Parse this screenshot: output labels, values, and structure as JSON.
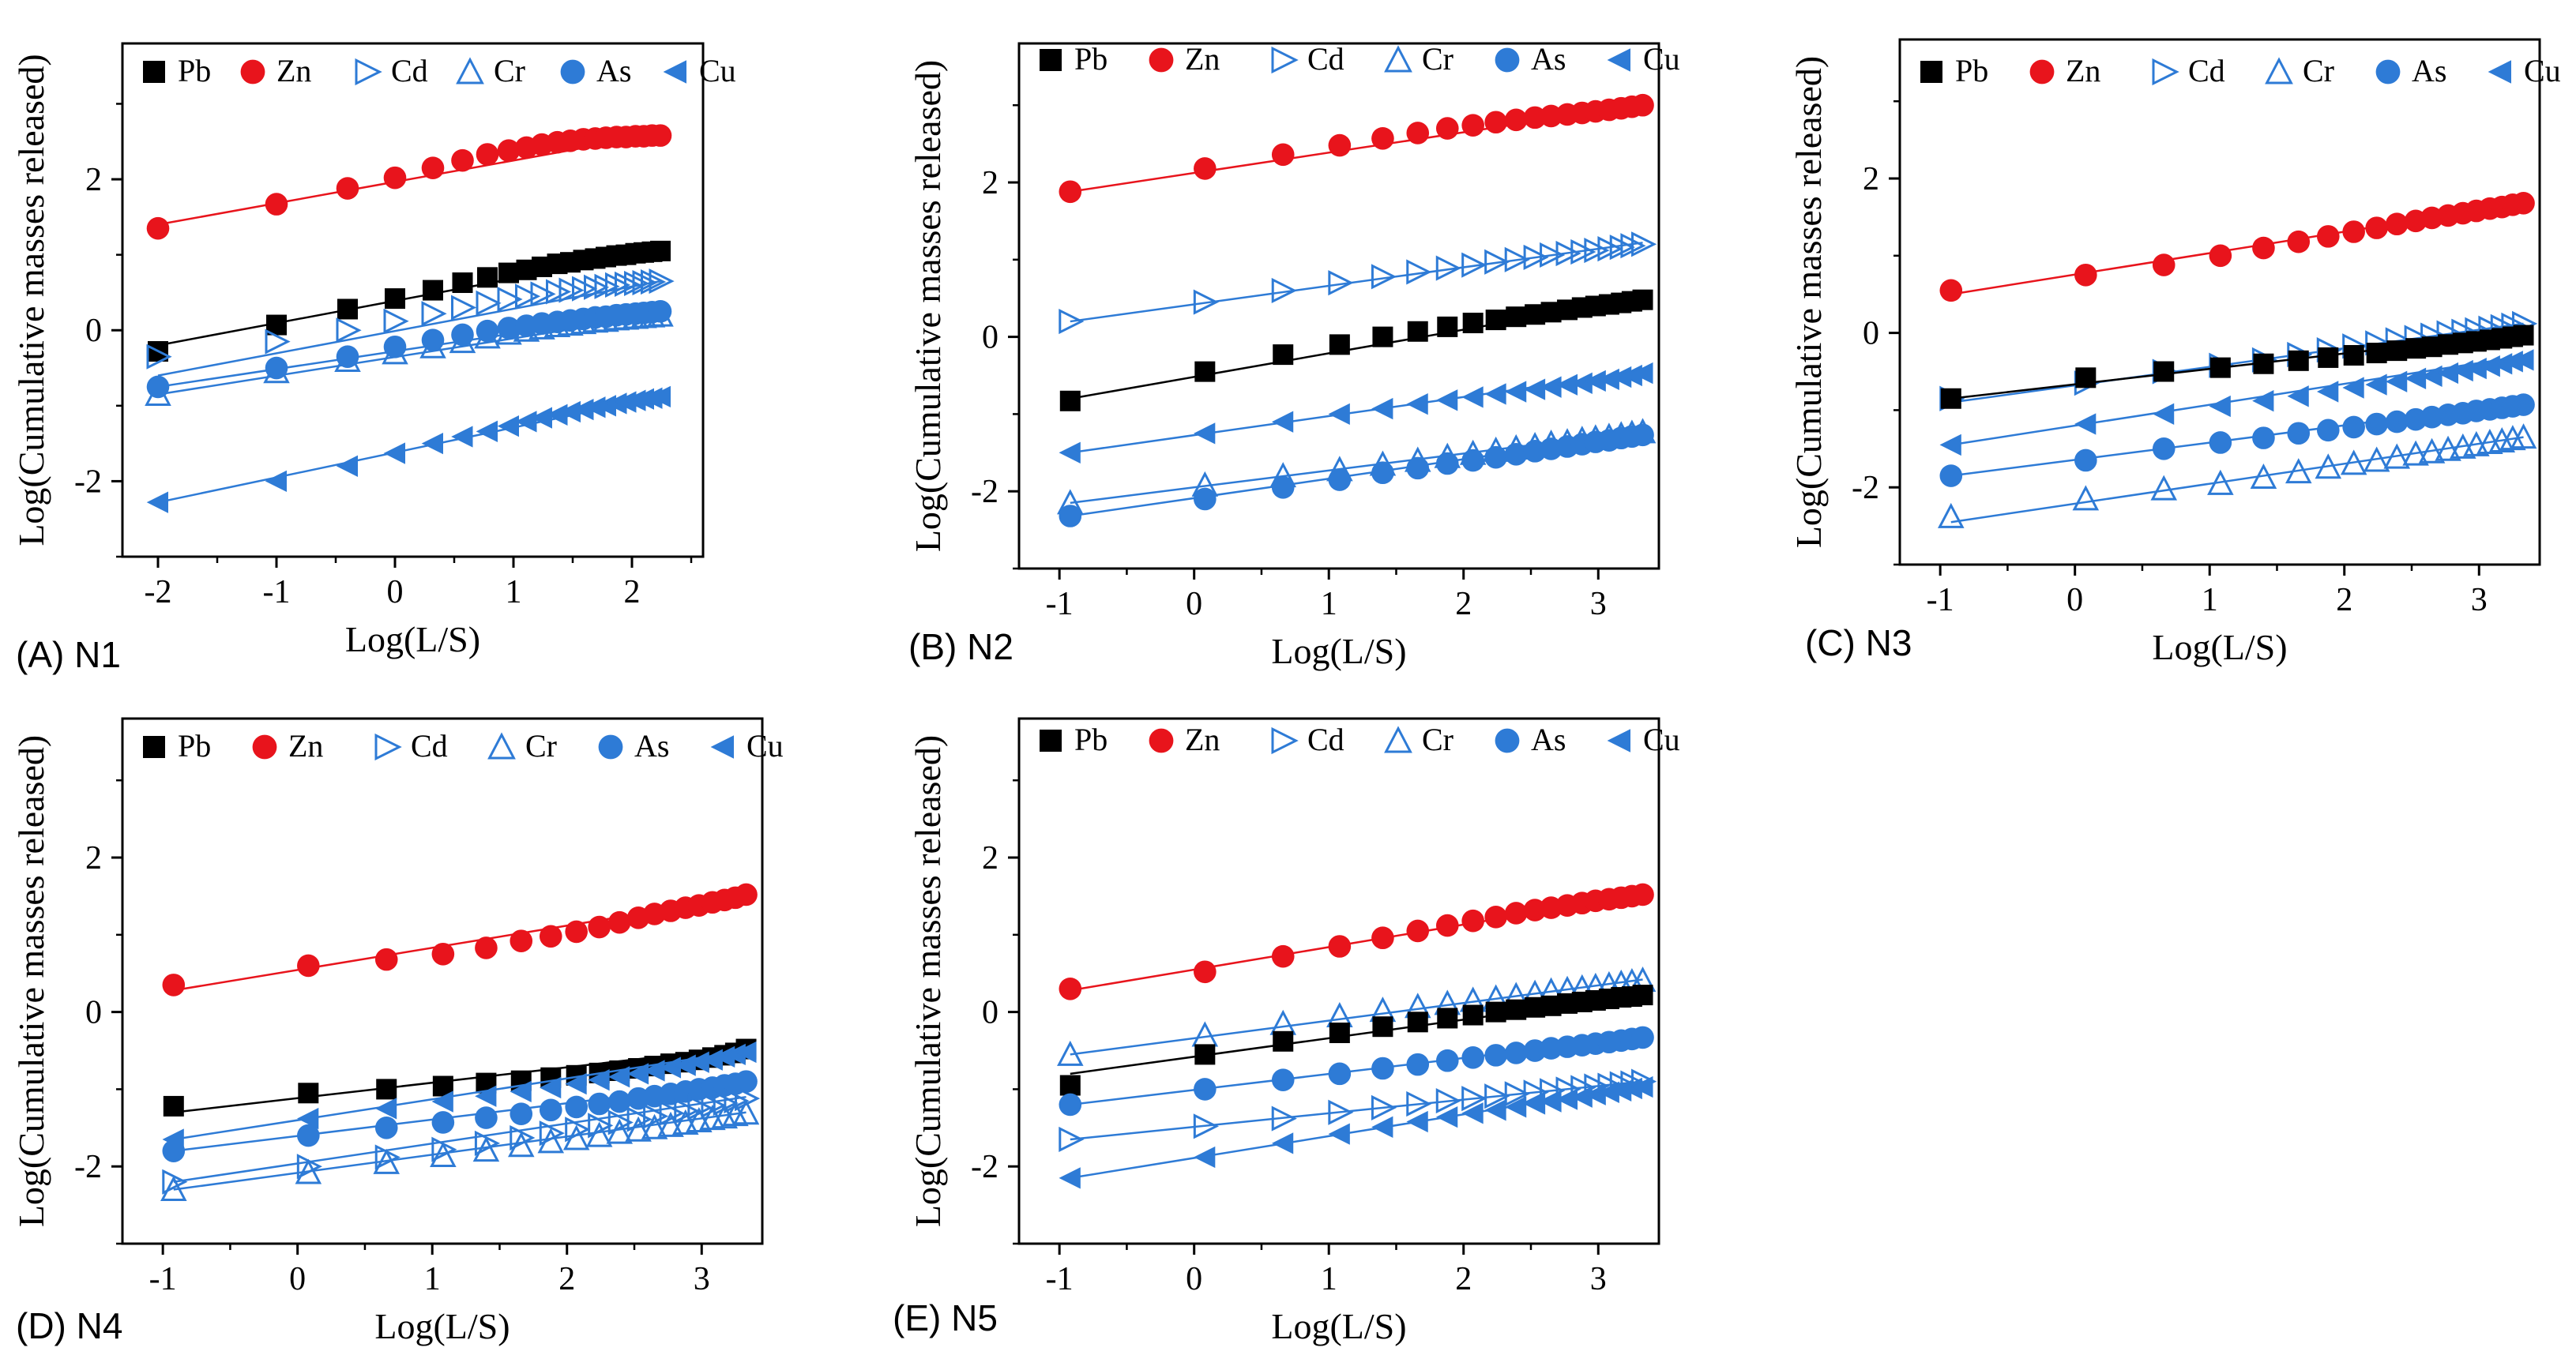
{
  "legend_labels": [
    "Pb",
    "Zn",
    "Cd",
    "Cr",
    "As",
    "Cu"
  ],
  "series_styles": {
    "Pb": {
      "color": "#000000",
      "marker": "square-filled"
    },
    "Zn": {
      "color": "#e8141c",
      "marker": "circle-filled"
    },
    "Cd": {
      "color": "#2e7bd6",
      "marker": "triangle-right-open"
    },
    "Cr": {
      "color": "#2e7bd6",
      "marker": "triangle-up-open"
    },
    "As": {
      "color": "#2e7bd6",
      "marker": "circle-filled"
    },
    "Cu": {
      "color": "#2e7bd6",
      "marker": "triangle-left-filled"
    }
  },
  "chart_data": [
    {
      "type": "scatter",
      "panel": "(A) N1",
      "xlabel": "Log(L/S)",
      "ylabel": "Log(Cumulative masses released)",
      "xlim": [
        -2.3,
        2.6
      ],
      "ylim": [
        -3.0,
        3.8
      ],
      "xticks": [
        -2,
        -1,
        0,
        1,
        2
      ],
      "yticks": [
        -2,
        0,
        2
      ],
      "legend_position": "top",
      "x": [
        -2.0,
        -1.0,
        -0.4,
        0.0,
        0.32,
        0.57,
        0.78,
        0.96,
        1.11,
        1.24,
        1.37,
        1.48,
        1.59,
        1.69,
        1.78,
        1.87,
        1.95,
        2.03,
        2.1,
        2.17,
        2.24
      ],
      "series": [
        {
          "name": "Zn",
          "fit": [
            1.4,
            2.6
          ],
          "values": [
            1.35,
            1.67,
            1.88,
            2.02,
            2.15,
            2.25,
            2.33,
            2.38,
            2.42,
            2.46,
            2.49,
            2.51,
            2.53,
            2.54,
            2.55,
            2.56,
            2.56,
            2.57,
            2.57,
            2.58,
            2.58
          ]
        },
        {
          "name": "Pb",
          "fit": [
            -0.2,
            1.05
          ],
          "values": [
            -0.28,
            0.07,
            0.28,
            0.42,
            0.53,
            0.63,
            0.7,
            0.76,
            0.8,
            0.84,
            0.88,
            0.9,
            0.93,
            0.95,
            0.97,
            0.99,
            1.0,
            1.02,
            1.03,
            1.04,
            1.05
          ]
        },
        {
          "name": "Cd",
          "fit": [
            -0.6,
            0.65
          ],
          "values": [
            -0.35,
            -0.15,
            0.0,
            0.12,
            0.22,
            0.3,
            0.36,
            0.41,
            0.45,
            0.48,
            0.51,
            0.53,
            0.55,
            0.57,
            0.58,
            0.6,
            0.61,
            0.62,
            0.63,
            0.64,
            0.65
          ]
        },
        {
          "name": "Cr",
          "fit": [
            -0.85,
            0.2
          ],
          "values": [
            -0.85,
            -0.55,
            -0.4,
            -0.3,
            -0.22,
            -0.15,
            -0.09,
            -0.04,
            0.0,
            0.03,
            0.06,
            0.08,
            0.1,
            0.12,
            0.13,
            0.15,
            0.16,
            0.17,
            0.18,
            0.19,
            0.2
          ]
        },
        {
          "name": "As",
          "fit": [
            -0.75,
            0.25
          ],
          "values": [
            -0.75,
            -0.5,
            -0.35,
            -0.22,
            -0.13,
            -0.06,
            -0.01,
            0.03,
            0.06,
            0.09,
            0.11,
            0.13,
            0.15,
            0.17,
            0.18,
            0.2,
            0.21,
            0.22,
            0.23,
            0.24,
            0.25
          ]
        },
        {
          "name": "Cu",
          "fit": [
            -2.28,
            -0.88
          ],
          "values": [
            -2.28,
            -2.0,
            -1.8,
            -1.63,
            -1.5,
            -1.41,
            -1.34,
            -1.27,
            -1.21,
            -1.16,
            -1.12,
            -1.08,
            -1.05,
            -1.02,
            -1.0,
            -0.97,
            -0.95,
            -0.93,
            -0.91,
            -0.9,
            -0.88
          ]
        }
      ]
    },
    {
      "type": "scatter",
      "panel": "(B) N2",
      "xlabel": "Log(L/S)",
      "ylabel": "Log(Cumulative masses released)",
      "xlim": [
        -1.3,
        3.45
      ],
      "ylim": [
        -3.0,
        3.8
      ],
      "xticks": [
        -1,
        0,
        1,
        2,
        3
      ],
      "yticks": [
        -2,
        0,
        2
      ],
      "legend_position": "top",
      "x": [
        -0.92,
        0.08,
        0.66,
        1.08,
        1.4,
        1.66,
        1.88,
        2.07,
        2.24,
        2.39,
        2.53,
        2.65,
        2.77,
        2.88,
        2.98,
        3.08,
        3.17,
        3.25,
        3.33
      ],
      "series": [
        {
          "name": "Zn",
          "fit": [
            1.88,
            3.0
          ],
          "values": [
            1.88,
            2.18,
            2.36,
            2.48,
            2.57,
            2.64,
            2.7,
            2.74,
            2.78,
            2.81,
            2.84,
            2.86,
            2.88,
            2.9,
            2.92,
            2.94,
            2.96,
            2.98,
            3.0
          ]
        },
        {
          "name": "Cd",
          "fit": [
            0.2,
            1.22
          ],
          "values": [
            0.2,
            0.45,
            0.6,
            0.7,
            0.78,
            0.84,
            0.89,
            0.93,
            0.97,
            1.0,
            1.03,
            1.06,
            1.08,
            1.1,
            1.12,
            1.14,
            1.16,
            1.18,
            1.2
          ]
        },
        {
          "name": "Pb",
          "fit": [
            -0.8,
            0.5
          ],
          "values": [
            -0.83,
            -0.45,
            -0.23,
            -0.1,
            0.0,
            0.07,
            0.13,
            0.18,
            0.22,
            0.26,
            0.29,
            0.32,
            0.35,
            0.38,
            0.4,
            0.42,
            0.44,
            0.46,
            0.48
          ]
        },
        {
          "name": "Cu",
          "fit": [
            -1.5,
            -0.45
          ],
          "values": [
            -1.5,
            -1.25,
            -1.1,
            -1.0,
            -0.93,
            -0.87,
            -0.82,
            -0.78,
            -0.74,
            -0.71,
            -0.68,
            -0.65,
            -0.62,
            -0.6,
            -0.57,
            -0.55,
            -0.52,
            -0.5,
            -0.47
          ]
        },
        {
          "name": "Cr",
          "fit": [
            -2.15,
            -1.22
          ],
          "values": [
            -2.15,
            -1.92,
            -1.8,
            -1.72,
            -1.65,
            -1.6,
            -1.55,
            -1.51,
            -1.47,
            -1.44,
            -1.41,
            -1.38,
            -1.36,
            -1.33,
            -1.31,
            -1.29,
            -1.27,
            -1.25,
            -1.23
          ]
        },
        {
          "name": "As",
          "fit": [
            -2.32,
            -1.25
          ],
          "values": [
            -2.32,
            -2.1,
            -1.95,
            -1.85,
            -1.76,
            -1.7,
            -1.64,
            -1.6,
            -1.56,
            -1.52,
            -1.48,
            -1.45,
            -1.42,
            -1.39,
            -1.36,
            -1.34,
            -1.31,
            -1.29,
            -1.27
          ]
        }
      ]
    },
    {
      "type": "scatter",
      "panel": "(C) N3",
      "xlabel": "Log(L/S)",
      "ylabel": "Log(Cumulative masses released)",
      "xlim": [
        -1.3,
        3.45
      ],
      "ylim": [
        -3.0,
        3.8
      ],
      "xticks": [
        -1,
        0,
        1,
        2,
        3
      ],
      "yticks": [
        -2,
        0,
        2
      ],
      "legend_position": "top",
      "x": [
        -0.92,
        0.08,
        0.66,
        1.08,
        1.4,
        1.66,
        1.88,
        2.07,
        2.24,
        2.39,
        2.53,
        2.65,
        2.77,
        2.88,
        2.98,
        3.08,
        3.17,
        3.25,
        3.33
      ],
      "series": [
        {
          "name": "Zn",
          "fit": [
            0.5,
            1.68
          ],
          "values": [
            0.55,
            0.75,
            0.88,
            1.0,
            1.1,
            1.18,
            1.25,
            1.31,
            1.36,
            1.41,
            1.45,
            1.49,
            1.52,
            1.55,
            1.58,
            1.61,
            1.63,
            1.66,
            1.68
          ]
        },
        {
          "name": "Cd",
          "fit": [
            -0.9,
            0.12
          ],
          "values": [
            -0.85,
            -0.65,
            -0.5,
            -0.42,
            -0.35,
            -0.28,
            -0.22,
            -0.17,
            -0.13,
            -0.09,
            -0.06,
            -0.03,
            0.0,
            0.02,
            0.04,
            0.06,
            0.08,
            0.1,
            0.12
          ]
        },
        {
          "name": "Pb",
          "fit": [
            -0.85,
            0.0
          ],
          "values": [
            -0.85,
            -0.58,
            -0.5,
            -0.45,
            -0.4,
            -0.36,
            -0.32,
            -0.29,
            -0.26,
            -0.23,
            -0.2,
            -0.18,
            -0.15,
            -0.13,
            -0.11,
            -0.09,
            -0.07,
            -0.05,
            -0.03
          ]
        },
        {
          "name": "Cu",
          "fit": [
            -1.45,
            -0.3
          ],
          "values": [
            -1.45,
            -1.18,
            -1.05,
            -0.95,
            -0.88,
            -0.82,
            -0.76,
            -0.71,
            -0.67,
            -0.63,
            -0.59,
            -0.56,
            -0.52,
            -0.49,
            -0.46,
            -0.43,
            -0.4,
            -0.37,
            -0.35
          ]
        },
        {
          "name": "As",
          "fit": [
            -1.85,
            -0.9
          ],
          "values": [
            -1.85,
            -1.65,
            -1.5,
            -1.42,
            -1.36,
            -1.3,
            -1.26,
            -1.22,
            -1.18,
            -1.15,
            -1.12,
            -1.09,
            -1.06,
            -1.04,
            -1.01,
            -0.99,
            -0.97,
            -0.95,
            -0.93
          ]
        },
        {
          "name": "Cr",
          "fit": [
            -2.45,
            -1.35
          ],
          "values": [
            -2.38,
            -2.15,
            -2.02,
            -1.95,
            -1.87,
            -1.8,
            -1.74,
            -1.69,
            -1.65,
            -1.61,
            -1.57,
            -1.54,
            -1.51,
            -1.48,
            -1.45,
            -1.42,
            -1.4,
            -1.37,
            -1.35
          ]
        }
      ]
    },
    {
      "type": "scatter",
      "panel": "(D) N4",
      "xlabel": "Log(L/S)",
      "ylabel": "Log(Cumulative masses released)",
      "xlim": [
        -1.3,
        3.45
      ],
      "ylim": [
        -3.0,
        3.8
      ],
      "xticks": [
        -1,
        0,
        1,
        2,
        3
      ],
      "yticks": [
        -2,
        0,
        2
      ],
      "legend_position": "top",
      "x": [
        -0.92,
        0.08,
        0.66,
        1.08,
        1.4,
        1.66,
        1.88,
        2.07,
        2.24,
        2.39,
        2.53,
        2.65,
        2.77,
        2.88,
        2.98,
        3.08,
        3.17,
        3.25,
        3.33
      ],
      "series": [
        {
          "name": "Zn",
          "fit": [
            0.28,
            1.5
          ],
          "values": [
            0.35,
            0.6,
            0.68,
            0.75,
            0.83,
            0.92,
            0.98,
            1.04,
            1.1,
            1.16,
            1.22,
            1.27,
            1.31,
            1.35,
            1.38,
            1.42,
            1.45,
            1.48,
            1.52
          ]
        },
        {
          "name": "Pb",
          "fit": [
            -1.3,
            -0.45
          ],
          "values": [
            -1.22,
            -1.05,
            -1.0,
            -0.96,
            -0.92,
            -0.89,
            -0.85,
            -0.82,
            -0.79,
            -0.76,
            -0.73,
            -0.7,
            -0.67,
            -0.65,
            -0.62,
            -0.59,
            -0.56,
            -0.53,
            -0.48
          ]
        },
        {
          "name": "Cu",
          "fit": [
            -1.65,
            -0.5
          ],
          "values": [
            -1.65,
            -1.38,
            -1.25,
            -1.16,
            -1.09,
            -1.03,
            -0.98,
            -0.93,
            -0.88,
            -0.84,
            -0.8,
            -0.76,
            -0.72,
            -0.69,
            -0.65,
            -0.62,
            -0.58,
            -0.55,
            -0.52
          ]
        },
        {
          "name": "As",
          "fit": [
            -1.8,
            -0.9
          ],
          "values": [
            -1.8,
            -1.6,
            -1.5,
            -1.43,
            -1.37,
            -1.32,
            -1.27,
            -1.23,
            -1.19,
            -1.16,
            -1.12,
            -1.09,
            -1.06,
            -1.03,
            -1.0,
            -0.98,
            -0.95,
            -0.93,
            -0.9
          ]
        },
        {
          "name": "Cd",
          "fit": [
            -2.2,
            -1.1
          ],
          "values": [
            -2.2,
            -2.0,
            -1.88,
            -1.78,
            -1.7,
            -1.63,
            -1.57,
            -1.52,
            -1.47,
            -1.43,
            -1.39,
            -1.35,
            -1.31,
            -1.28,
            -1.24,
            -1.21,
            -1.18,
            -1.15,
            -1.12
          ]
        },
        {
          "name": "Cr",
          "fit": [
            -2.3,
            -1.3
          ],
          "values": [
            -2.3,
            -2.08,
            -1.95,
            -1.86,
            -1.79,
            -1.73,
            -1.68,
            -1.64,
            -1.6,
            -1.56,
            -1.53,
            -1.5,
            -1.47,
            -1.44,
            -1.41,
            -1.38,
            -1.36,
            -1.33,
            -1.31
          ]
        }
      ]
    },
    {
      "type": "scatter",
      "panel": "(E) N5",
      "xlabel": "Log(L/S)",
      "ylabel": "Log(Cumulative masses released)",
      "xlim": [
        -1.3,
        3.45
      ],
      "ylim": [
        -3.0,
        3.8
      ],
      "xticks": [
        -1,
        0,
        1,
        2,
        3
      ],
      "yticks": [
        -2,
        0,
        2
      ],
      "legend_position": "top",
      "x": [
        -0.92,
        0.08,
        0.66,
        1.08,
        1.4,
        1.66,
        1.88,
        2.07,
        2.24,
        2.39,
        2.53,
        2.65,
        2.77,
        2.88,
        2.98,
        3.08,
        3.17,
        3.25,
        3.33
      ],
      "series": [
        {
          "name": "Zn",
          "fit": [
            0.28,
            1.52
          ],
          "values": [
            0.3,
            0.52,
            0.72,
            0.85,
            0.96,
            1.05,
            1.12,
            1.18,
            1.23,
            1.28,
            1.32,
            1.35,
            1.38,
            1.41,
            1.44,
            1.46,
            1.48,
            1.5,
            1.52
          ]
        },
        {
          "name": "Cr",
          "fit": [
            -0.55,
            0.42
          ],
          "values": [
            -0.55,
            -0.3,
            -0.15,
            -0.05,
            0.02,
            0.07,
            0.11,
            0.15,
            0.18,
            0.21,
            0.24,
            0.27,
            0.29,
            0.31,
            0.33,
            0.35,
            0.37,
            0.39,
            0.41
          ]
        },
        {
          "name": "Pb",
          "fit": [
            -0.8,
            0.22
          ],
          "values": [
            -0.95,
            -0.55,
            -0.38,
            -0.27,
            -0.19,
            -0.13,
            -0.08,
            -0.04,
            0.0,
            0.03,
            0.06,
            0.08,
            0.11,
            0.13,
            0.15,
            0.17,
            0.19,
            0.2,
            0.22
          ]
        },
        {
          "name": "As",
          "fit": [
            -1.2,
            -0.32
          ],
          "values": [
            -1.2,
            -1.0,
            -0.88,
            -0.8,
            -0.73,
            -0.68,
            -0.63,
            -0.59,
            -0.56,
            -0.53,
            -0.5,
            -0.47,
            -0.45,
            -0.43,
            -0.41,
            -0.39,
            -0.37,
            -0.35,
            -0.33
          ]
        },
        {
          "name": "Cd",
          "fit": [
            -1.65,
            -0.9
          ],
          "values": [
            -1.65,
            -1.48,
            -1.38,
            -1.3,
            -1.24,
            -1.19,
            -1.15,
            -1.12,
            -1.09,
            -1.06,
            -1.04,
            -1.02,
            -1.0,
            -0.98,
            -0.96,
            -0.95,
            -0.93,
            -0.92,
            -0.9
          ]
        },
        {
          "name": "Cu",
          "fit": [
            -2.15,
            -0.95
          ],
          "values": [
            -2.15,
            -1.88,
            -1.7,
            -1.58,
            -1.49,
            -1.42,
            -1.36,
            -1.31,
            -1.27,
            -1.23,
            -1.19,
            -1.16,
            -1.13,
            -1.1,
            -1.07,
            -1.04,
            -1.02,
            -0.99,
            -0.97
          ]
        }
      ]
    }
  ]
}
